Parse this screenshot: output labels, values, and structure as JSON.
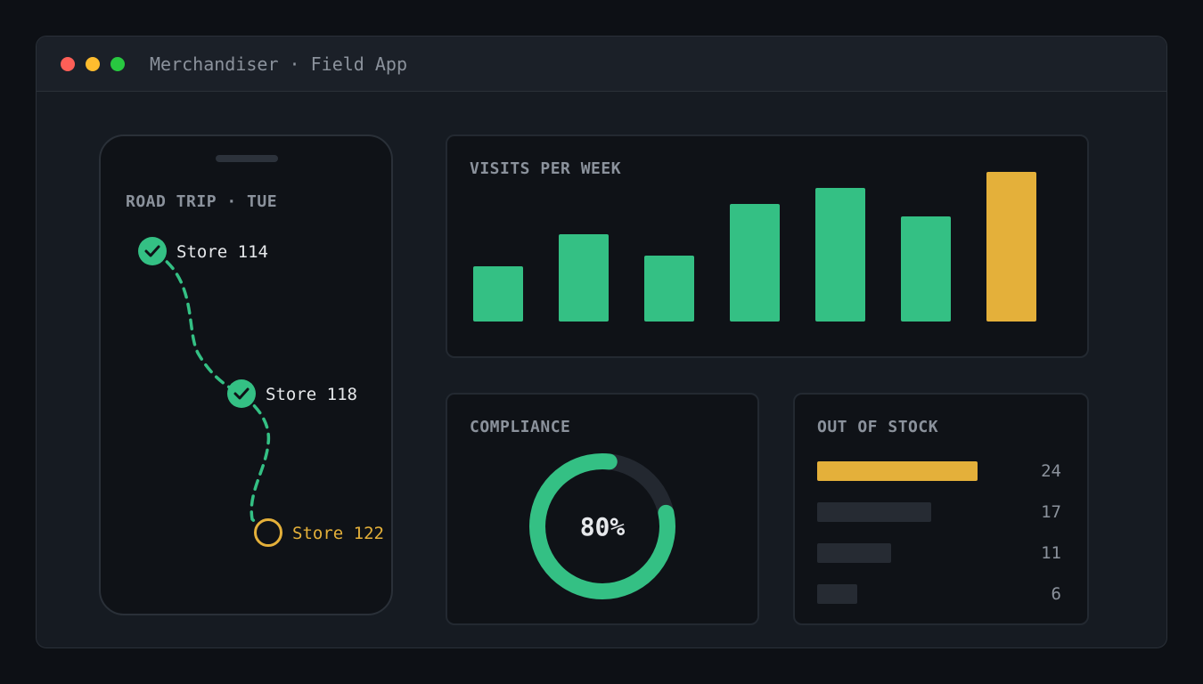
{
  "window": {
    "title": "Merchandiser · Field App",
    "controls": [
      "close",
      "minimize",
      "maximize"
    ]
  },
  "road_trip": {
    "title": "ROAD TRIP · TUE",
    "stops": [
      {
        "label": "Store 114",
        "status": "done",
        "icon": "check-icon"
      },
      {
        "label": "Store 118",
        "status": "done",
        "icon": "check-icon"
      },
      {
        "label": "Store 122",
        "status": "pending",
        "icon": "circle-icon"
      }
    ]
  },
  "visits": {
    "title": "VISITS PER WEEK"
  },
  "compliance": {
    "title": "COMPLIANCE",
    "value": 0.8,
    "label": "80%"
  },
  "out_of_stock": {
    "title": "OUT OF STOCK",
    "max": 24,
    "rows": [
      {
        "value": "24",
        "highlight": true
      },
      {
        "value": "17",
        "highlight": false
      },
      {
        "value": "11",
        "highlight": false
      },
      {
        "value": "6",
        "highlight": false
      }
    ]
  },
  "colors": {
    "accent_green": "#34c084",
    "accent_amber": "#e4b03a",
    "muted_bar": "#262b33",
    "track": "#232830"
  },
  "chart_data": [
    {
      "type": "bar",
      "title": "VISITS PER WEEK",
      "categories": [
        "",
        "",
        "",
        "",
        "",
        "",
        ""
      ],
      "values": [
        31,
        49,
        37,
        66,
        75,
        59,
        84
      ],
      "highlight_index": 6,
      "ylim": [
        0,
        84
      ],
      "grid": false
    },
    {
      "type": "bar",
      "title": "OUT OF STOCK",
      "orientation": "horizontal",
      "values": [
        24,
        17,
        11,
        6
      ],
      "xlim": [
        0,
        24
      ]
    }
  ]
}
